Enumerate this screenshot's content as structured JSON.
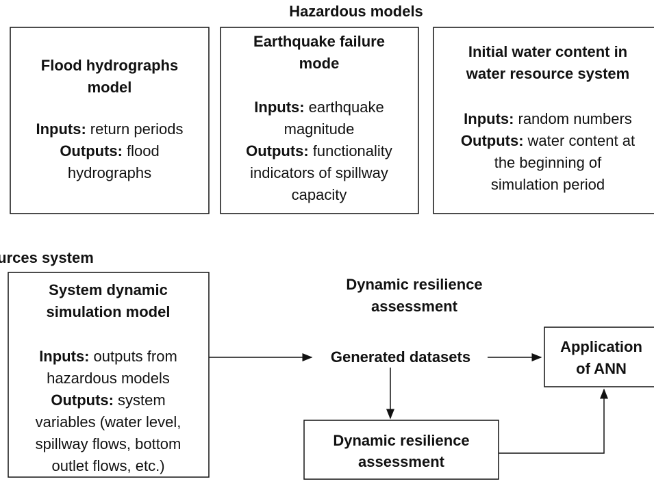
{
  "hazard_section": {
    "title": "Hazardous models",
    "boxes": [
      {
        "title": [
          "Flood hydrographs",
          "model"
        ],
        "inputs": {
          "label": "Inputs:",
          "lines": [
            "return periods"
          ]
        },
        "outputs": {
          "label": "Outputs:",
          "lines": [
            "flood",
            "hydrographs"
          ]
        }
      },
      {
        "title": [
          "Earthquake failure",
          "mode"
        ],
        "inputs": {
          "label": "Inputs:",
          "lines": [
            "earthquake",
            "magnitude"
          ]
        },
        "outputs": {
          "label": "Outputs:",
          "lines": [
            "functionality",
            "indicators of spillway",
            "capacity"
          ]
        }
      },
      {
        "title": [
          "Initial water content in",
          "water resource system"
        ],
        "inputs": {
          "label": "Inputs:",
          "lines": [
            "random numbers"
          ]
        },
        "outputs": {
          "label": "Outputs:",
          "lines": [
            "water content at",
            "the beginning of",
            "simulation period"
          ]
        }
      }
    ]
  },
  "system_section": {
    "title": "Water resources system",
    "box": {
      "title": [
        "System dynamic",
        "simulation model"
      ],
      "inputs": {
        "label": "Inputs:",
        "lines": [
          "outputs from",
          "hazardous models"
        ]
      },
      "outputs": {
        "label": "Outputs:",
        "lines": [
          "system",
          "variables (water level,",
          "spillway flows, bottom",
          "outlet flows, etc.)"
        ]
      }
    }
  },
  "assessment_section": {
    "title": [
      "Dynamic resilience",
      "assessment"
    ],
    "generated": "Generated datasets",
    "application": [
      "Application",
      "of ANN"
    ],
    "assessment_box": [
      "Dynamic resilience",
      "assessment"
    ]
  }
}
